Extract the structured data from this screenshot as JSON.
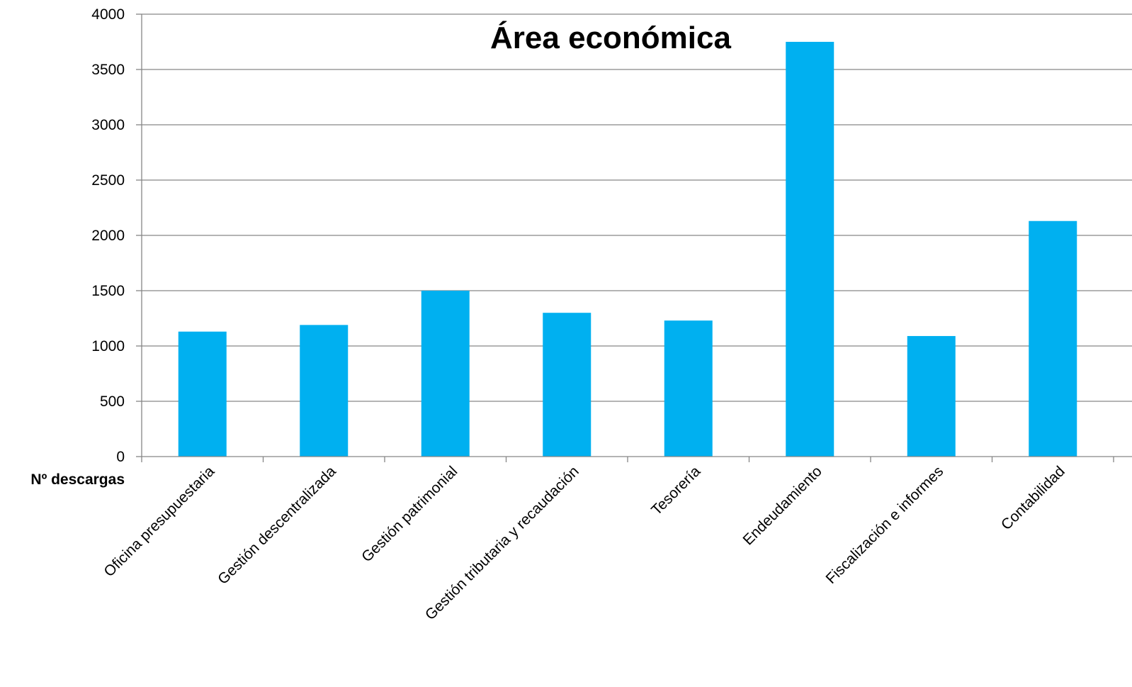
{
  "chart_data": {
    "type": "bar",
    "title": "Área económica",
    "ylabel": "Nº descargas",
    "xlabel": "",
    "categories": [
      "Oficina presupuestaria",
      "Gestión descentralizada",
      "Gestión patrimonial",
      "Gestión tributaria y recaudación",
      "Tesorería",
      "Endeudamiento",
      "Fiscalización e informes",
      "Contabilidad"
    ],
    "values": [
      1130,
      1190,
      1500,
      1300,
      1230,
      3750,
      1090,
      2130
    ],
    "ylim": [
      0,
      4000
    ],
    "yticks": [
      0,
      500,
      1000,
      1500,
      2000,
      2500,
      3000,
      3500,
      4000
    ],
    "grid": true,
    "legend": "none",
    "colors": {
      "bar": "#00B0F0",
      "grid": "#868686",
      "axis": "#868686"
    }
  }
}
